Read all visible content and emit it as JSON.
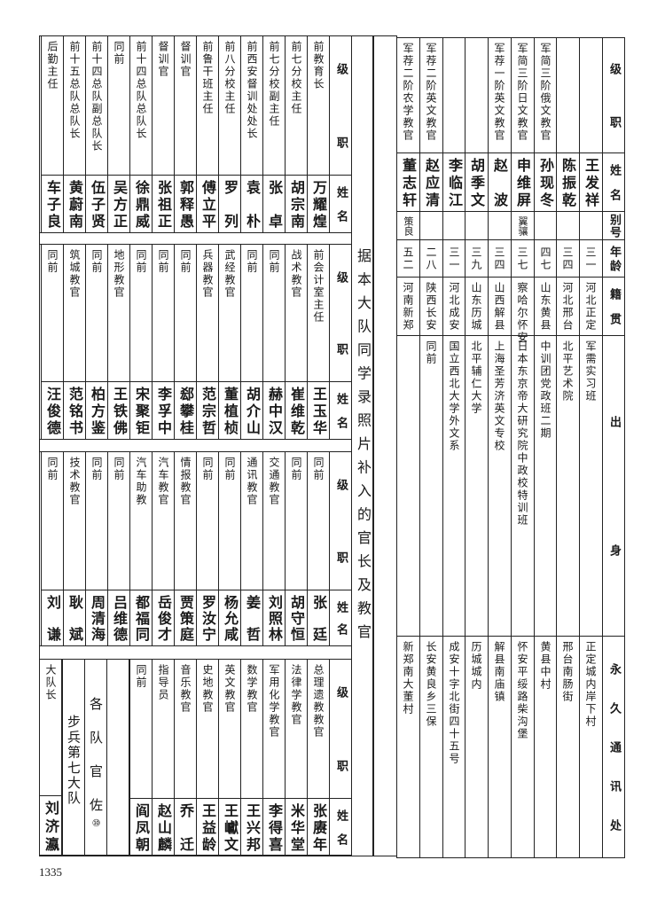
{
  "page_number": "1335",
  "title_note": "据本大队同学录照片补入的官长及教官",
  "left_table": {
    "headers": {
      "position": "级职",
      "name": "姓名"
    },
    "bands": [
      [
        {
          "position": "前教育长",
          "name": "万耀煌"
        },
        {
          "position": "前七分校主任",
          "name": "胡宗南"
        },
        {
          "position": "前七分校副主任",
          "name": "张卓"
        },
        {
          "position": "前西安督训处处长",
          "name": "袁朴"
        },
        {
          "position": "前八分校主任",
          "name": "罗列"
        },
        {
          "position": "前鲁干班主任",
          "name": "傅立平"
        },
        {
          "position": "督训官",
          "name": "郭释愚"
        },
        {
          "position": "督训官",
          "name": "张祖正"
        },
        {
          "position": "前十四总队总队长",
          "name": "徐鼎威"
        },
        {
          "position": "同前",
          "name": "吴方正"
        },
        {
          "position": "前十四总队副总队长",
          "name": "伍子贤"
        },
        {
          "position": "前十五总队总队长",
          "name": "黄蔚南"
        },
        {
          "position": "后勤主任",
          "name": "车子良"
        }
      ],
      [
        {
          "position": "前会计室主任",
          "name": "王玉华"
        },
        {
          "position": "战术教官",
          "name": "崔维乾"
        },
        {
          "position": "同前",
          "name": "赫中汉"
        },
        {
          "position": "同前",
          "name": "胡介山"
        },
        {
          "position": "武经教官",
          "name": "董植桢"
        },
        {
          "position": "兵器教官",
          "name": "范宗哲"
        },
        {
          "position": "同前",
          "name": "郄攀桂"
        },
        {
          "position": "同前",
          "name": "李孚中"
        },
        {
          "position": "同前",
          "name": "宋聚钜"
        },
        {
          "position": "地形教官",
          "name": "王铁佛"
        },
        {
          "position": "同前",
          "name": "柏方鉴"
        },
        {
          "position": "筑城教官",
          "name": "范铭书"
        },
        {
          "position": "同前",
          "name": "汪俊德"
        }
      ],
      [
        {
          "position": "同前",
          "name": "张廷"
        },
        {
          "position": "同前",
          "name": "胡守恒"
        },
        {
          "position": "交通教官",
          "name": "刘照林"
        },
        {
          "position": "通讯教官",
          "name": "姜哲"
        },
        {
          "position": "同前",
          "name": "杨允咸"
        },
        {
          "position": "同前",
          "name": "罗汝宁"
        },
        {
          "position": "情报教官",
          "name": "贾策庭"
        },
        {
          "position": "汽车教官",
          "name": "岳俊才"
        },
        {
          "position": "汽车助教",
          "name": "都福同"
        },
        {
          "position": "同前",
          "name": "吕维德"
        },
        {
          "position": "同前",
          "name": "周清海"
        },
        {
          "position": "技术教官",
          "name": "耿斌"
        },
        {
          "position": "同前",
          "name": "刘谦"
        }
      ],
      [
        {
          "position": "总理遗教教官",
          "name": "张赓年"
        },
        {
          "position": "法律学教官",
          "name": "米华堂"
        },
        {
          "position": "军用化学教官",
          "name": "李得喜"
        },
        {
          "position": "数学教官",
          "name": "王兴邦"
        },
        {
          "position": "英文教官",
          "name": "王巘文"
        },
        {
          "position": "史地教官",
          "name": "王益龄"
        },
        {
          "position": "音乐教官",
          "name": "乔迁"
        },
        {
          "position": "指导员",
          "name": "赵山麟"
        },
        {
          "position": "同前",
          "name": "阎凤朝"
        }
      ]
    ],
    "band4_extra": {
      "group_label": "各队官佐",
      "group_count": "⑩",
      "unit": "步兵第七大队",
      "commander": {
        "position": "大队长",
        "name": "刘济瀛"
      }
    }
  },
  "right_table": {
    "headers": {
      "position": "级职",
      "name": "姓名",
      "alias": "别号",
      "age": "年龄",
      "origin": "籍贯",
      "background": "出身",
      "address": "永久通讯处"
    },
    "rows": [
      {
        "position": "",
        "name": "王发祥",
        "alias": "",
        "age": "三一",
        "origin": "河北正定",
        "background": "军需实习班",
        "address": "正定城内岸下村"
      },
      {
        "position": "",
        "name": "陈振乾",
        "alias": "",
        "age": "三四",
        "origin": "河北邢台",
        "background": "北平艺术院",
        "address": "邢台南肠街"
      },
      {
        "position": "军简三阶俄文教官",
        "name": "孙现冬",
        "alias": "",
        "age": "四七",
        "origin": "山东黄县",
        "background": "中训团党政班二期",
        "address": "黄县中村"
      },
      {
        "position": "军简三阶日文教官",
        "name": "申维屏",
        "alias": "翼骧",
        "age": "三七",
        "origin": "察哈尔怀安",
        "background": "日本东京帝大研究院中政校特训班",
        "address": "怀安平绥路柴沟堡"
      },
      {
        "position": "军荐一阶英文教官",
        "name": "赵波",
        "alias": "",
        "age": "三四",
        "origin": "山西解县",
        "background": "上海圣芳济英文专校",
        "address": "解县南庙镇"
      },
      {
        "position": "",
        "name": "胡季文",
        "alias": "",
        "age": "三九",
        "origin": "山东历城",
        "background": "北平辅仁大学",
        "address": "历城城内"
      },
      {
        "position": "",
        "name": "李临江",
        "alias": "",
        "age": "三一",
        "origin": "河北成安",
        "background": "国立西北大学外文系",
        "address": "成安十字北街四十五号"
      },
      {
        "position": "军荐二阶英文教官",
        "name": "赵应清",
        "alias": "",
        "age": "二八",
        "origin": "陕西长安",
        "background": "同前",
        "address": "长安黄良乡三保"
      },
      {
        "position": "军荐二阶农学教官",
        "name": "董志轩",
        "alias": "策良",
        "age": "五二",
        "origin": "河南新郑",
        "background": "",
        "address": "新郑南大董村"
      }
    ]
  }
}
